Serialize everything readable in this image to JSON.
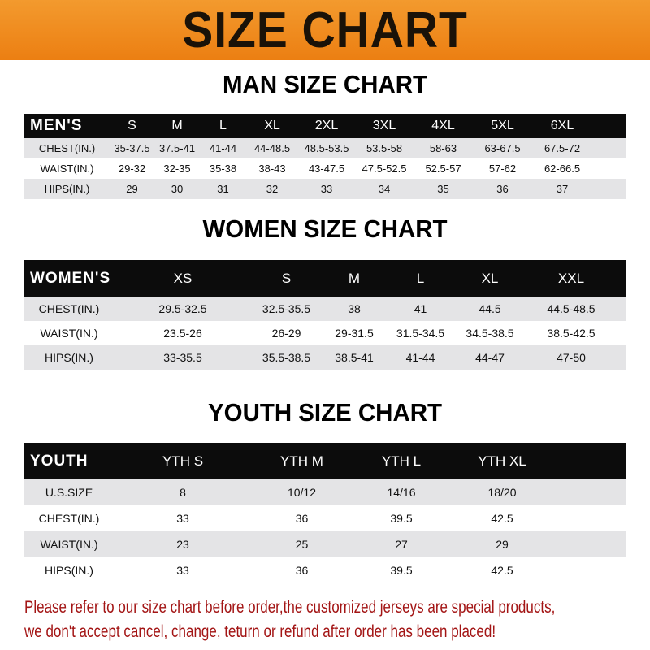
{
  "banner_title": "SIZE CHART",
  "men": {
    "title": "MAN SIZE CHART",
    "header": [
      "MEN'S",
      "S",
      "M",
      "L",
      "XL",
      "2XL",
      "3XL",
      "4XL",
      "5XL",
      "6XL"
    ],
    "rows": [
      [
        "CHEST(IN.)",
        "35-37.5",
        "37.5-41",
        "41-44",
        "44-48.5",
        "48.5-53.5",
        "53.5-58",
        "58-63",
        "63-67.5",
        "67.5-72"
      ],
      [
        "WAIST(IN.)",
        "29-32",
        "32-35",
        "35-38",
        "38-43",
        "43-47.5",
        "47.5-52.5",
        "52.5-57",
        "57-62",
        "62-66.5"
      ],
      [
        "HIPS(IN.)",
        "29",
        "30",
        "31",
        "32",
        "33",
        "34",
        "35",
        "36",
        "37"
      ]
    ]
  },
  "women": {
    "title": "WOMEN SIZE CHART",
    "header": [
      "WOMEN'S",
      "XS",
      "S",
      "M",
      "L",
      "XL",
      "XXL"
    ],
    "rows": [
      [
        "CHEST(IN.)",
        "29.5-32.5",
        "32.5-35.5",
        "38",
        "41",
        "44.5",
        "44.5-48.5"
      ],
      [
        "WAIST(IN.)",
        "23.5-26",
        "26-29",
        "29-31.5",
        "31.5-34.5",
        "34.5-38.5",
        "38.5-42.5"
      ],
      [
        "HIPS(IN.)",
        "33-35.5",
        "35.5-38.5",
        "38.5-41",
        "41-44",
        "44-47",
        "47-50"
      ]
    ]
  },
  "youth": {
    "title": "YOUTH SIZE CHART",
    "header": [
      "YOUTH",
      "YTH S",
      "YTH M",
      "YTH L",
      "YTH XL"
    ],
    "rows": [
      [
        "U.S.SIZE",
        "8",
        "10/12",
        "14/16",
        "18/20"
      ],
      [
        "CHEST(IN.)",
        "33",
        "36",
        "39.5",
        "42.5"
      ],
      [
        "WAIST(IN.)",
        "23",
        "25",
        "27",
        "29"
      ],
      [
        "HIPS(IN.)",
        "33",
        "36",
        "39.5",
        "42.5"
      ]
    ]
  },
  "note": {
    "line1": "Please refer to our size chart before order,the customized jerseys are special products,",
    "line2": "we don't accept cancel, change, teturn or refund after order has been placed!"
  },
  "colors": {
    "banner": "#ec7f12",
    "header_row": "#0c0c0c",
    "stripe": "#e4e4e6",
    "note": "#a31515"
  }
}
